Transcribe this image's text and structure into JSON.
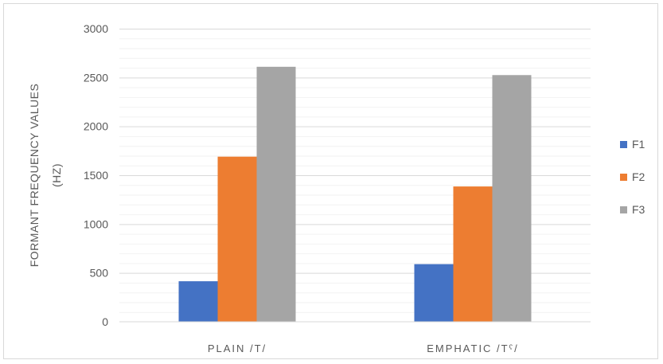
{
  "chart_data": {
    "type": "bar",
    "title": "",
    "categories": [
      "PLAIN /T/",
      "EMPHATIC /Tˤ/"
    ],
    "series": [
      {
        "name": "F1",
        "values": [
          415,
          590
        ],
        "color": "#4472c4"
      },
      {
        "name": "F2",
        "values": [
          1690,
          1385
        ],
        "color": "#ed7d31"
      },
      {
        "name": "F3",
        "values": [
          2610,
          2525
        ],
        "color": "#a5a5a5"
      }
    ],
    "ylabel_line1": "FORMANT FREQUENCY VALUES",
    "ylabel_line2": "(HZ)",
    "xlabel": "",
    "ylim": [
      0,
      3000
    ],
    "major_ticks": [
      0,
      500,
      1000,
      1500,
      2000,
      2500,
      3000
    ],
    "minor_step": 100,
    "grid": true,
    "legend_position": "right"
  }
}
